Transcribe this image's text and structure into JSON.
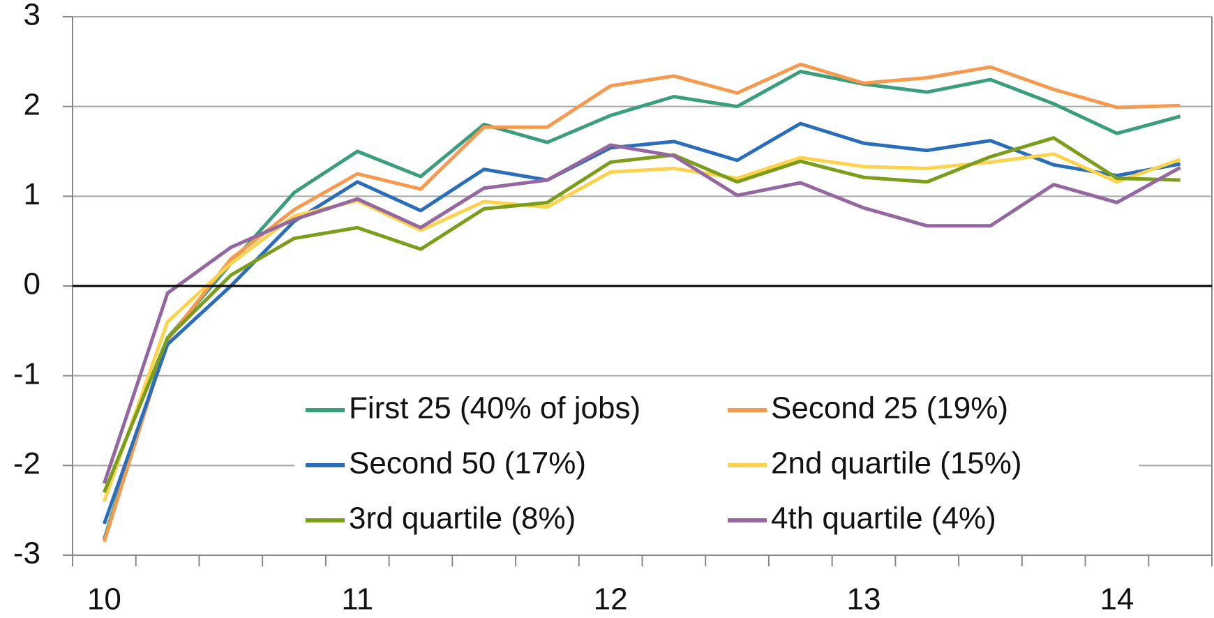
{
  "chart_data": {
    "type": "line",
    "categories": [
      "10",
      null,
      null,
      null,
      "11",
      null,
      null,
      null,
      "12",
      null,
      null,
      null,
      "13",
      null,
      null,
      null,
      "14",
      null
    ],
    "series": [
      {
        "name": "First 25 (40% of jobs)",
        "color": "#3a9e7e",
        "values": [
          -2.82,
          -0.58,
          0.25,
          1.04,
          1.5,
          1.22,
          1.8,
          1.6,
          1.9,
          2.11,
          2.0,
          2.39,
          2.25,
          2.16,
          2.3,
          2.03,
          1.7,
          1.89
        ]
      },
      {
        "name": "Second 25 (19%)",
        "color": "#f59a4e",
        "values": [
          -2.85,
          -0.6,
          0.3,
          0.85,
          1.25,
          1.08,
          1.77,
          1.77,
          2.23,
          2.34,
          2.15,
          2.47,
          2.26,
          2.32,
          2.44,
          2.19,
          1.99,
          2.01
        ]
      },
      {
        "name": "Second 50 (17%)",
        "color": "#2a6ebb",
        "values": [
          -2.65,
          -0.65,
          0.0,
          0.72,
          1.16,
          0.84,
          1.3,
          1.18,
          1.54,
          1.61,
          1.4,
          1.81,
          1.59,
          1.51,
          1.62,
          1.35,
          1.23,
          1.36
        ]
      },
      {
        "name": "2nd quartile (15%)",
        "color": "#fdd34e",
        "values": [
          -2.4,
          -0.4,
          0.25,
          0.78,
          0.95,
          0.62,
          0.94,
          0.88,
          1.27,
          1.31,
          1.2,
          1.43,
          1.33,
          1.31,
          1.38,
          1.47,
          1.16,
          1.41
        ]
      },
      {
        "name": "3rd quartile (8%)",
        "color": "#7a9e1a",
        "values": [
          -2.3,
          -0.58,
          0.12,
          0.53,
          0.65,
          0.41,
          0.86,
          0.93,
          1.38,
          1.46,
          1.16,
          1.39,
          1.21,
          1.16,
          1.44,
          1.65,
          1.2,
          1.18
        ]
      },
      {
        "name": "4th quartile (4%)",
        "color": "#9467a0",
        "values": [
          -2.2,
          -0.08,
          0.43,
          0.74,
          0.97,
          0.65,
          1.09,
          1.18,
          1.57,
          1.45,
          1.01,
          1.15,
          0.87,
          0.67,
          0.67,
          1.13,
          0.93,
          1.32
        ]
      }
    ],
    "ylim": [
      -3,
      3
    ],
    "yticks": [
      -3,
      -2,
      -1,
      0,
      1,
      2,
      3
    ],
    "grid": true,
    "legend": "bottom"
  }
}
